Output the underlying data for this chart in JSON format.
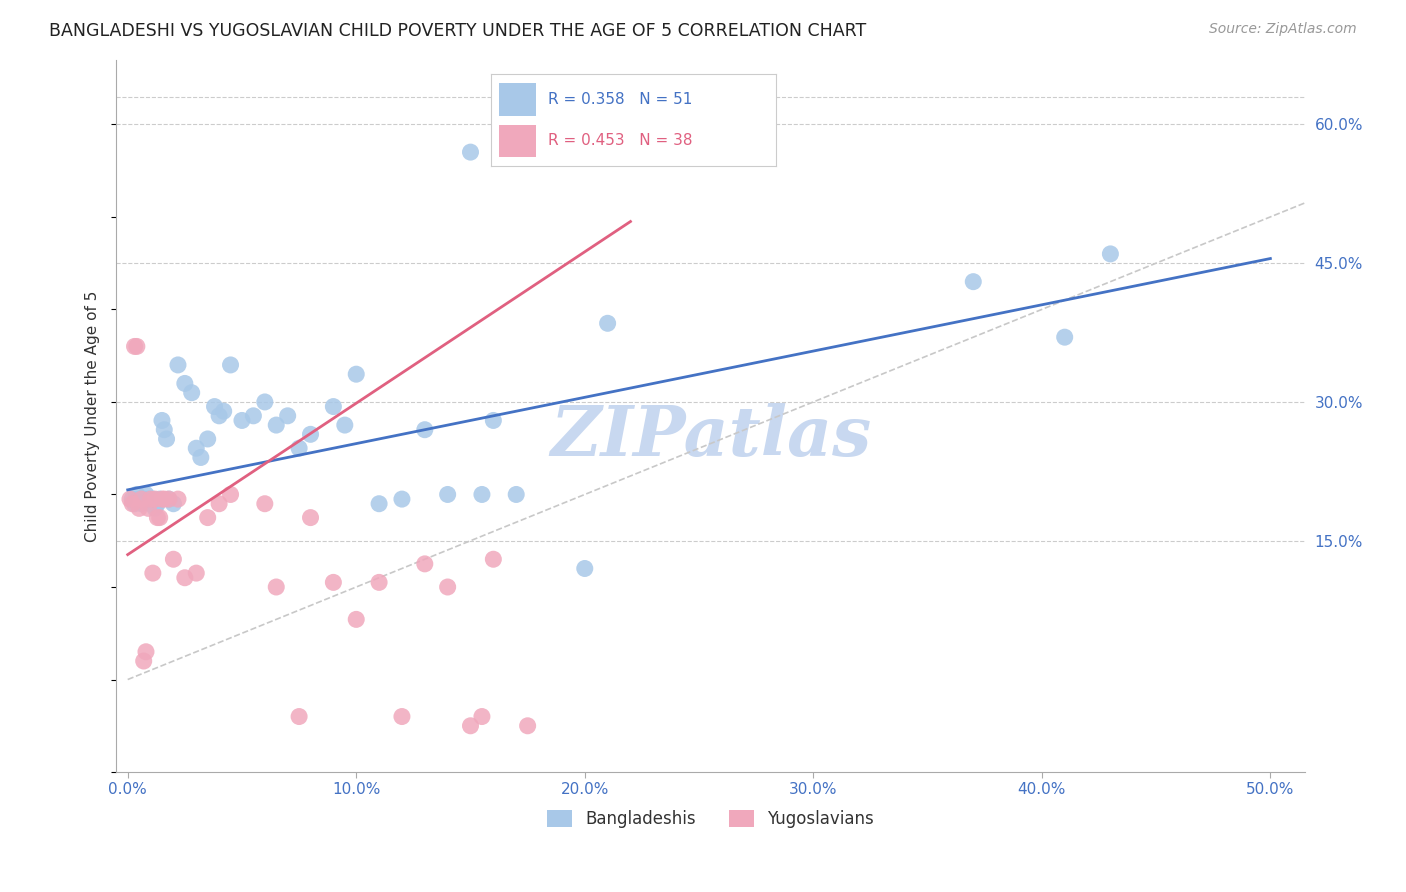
{
  "title": "BANGLADESHI VS YUGOSLAVIAN CHILD POVERTY UNDER THE AGE OF 5 CORRELATION CHART",
  "source": "Source: ZipAtlas.com",
  "ylabel": "Child Poverty Under the Age of 5",
  "xlabel_ticks": [
    "0.0%",
    "10.0%",
    "20.0%",
    "30.0%",
    "40.0%",
    "50.0%"
  ],
  "xlabel_vals": [
    0.0,
    0.1,
    0.2,
    0.3,
    0.4,
    0.5
  ],
  "ylabel_ticks": [
    "15.0%",
    "30.0%",
    "45.0%",
    "60.0%"
  ],
  "ylabel_vals": [
    0.15,
    0.3,
    0.45,
    0.6
  ],
  "xlim": [
    -0.005,
    0.515
  ],
  "ylim": [
    -0.1,
    0.67
  ],
  "bangladeshi_R": 0.358,
  "bangladeshi_N": 51,
  "yugoslavian_R": 0.453,
  "yugoslavian_N": 38,
  "bangladeshi_color": "#a8c8e8",
  "yugoslavian_color": "#f0a8bc",
  "bangladeshi_line_color": "#4472c4",
  "yugoslavian_line_color": "#e06080",
  "diagonal_color": "#c8c8c8",
  "ban_line_x0": 0.0,
  "ban_line_y0": 0.205,
  "ban_line_x1": 0.5,
  "ban_line_y1": 0.455,
  "yug_line_x0": 0.0,
  "yug_line_y0": 0.135,
  "yug_line_x1": 0.22,
  "yug_line_y1": 0.495,
  "bangladeshi_x": [
    0.002,
    0.003,
    0.004,
    0.005,
    0.006,
    0.007,
    0.008,
    0.009,
    0.01,
    0.011,
    0.012,
    0.013,
    0.014,
    0.015,
    0.016,
    0.017,
    0.018,
    0.02,
    0.022,
    0.025,
    0.028,
    0.03,
    0.032,
    0.035,
    0.038,
    0.04,
    0.042,
    0.045,
    0.05,
    0.055,
    0.06,
    0.065,
    0.07,
    0.075,
    0.08,
    0.09,
    0.095,
    0.1,
    0.11,
    0.12,
    0.13,
    0.14,
    0.15,
    0.155,
    0.16,
    0.17,
    0.2,
    0.21,
    0.37,
    0.41,
    0.43
  ],
  "bangladeshi_y": [
    0.195,
    0.19,
    0.2,
    0.195,
    0.19,
    0.195,
    0.2,
    0.195,
    0.19,
    0.195,
    0.185,
    0.19,
    0.195,
    0.28,
    0.27,
    0.26,
    0.195,
    0.19,
    0.34,
    0.32,
    0.31,
    0.25,
    0.24,
    0.26,
    0.295,
    0.285,
    0.29,
    0.34,
    0.28,
    0.285,
    0.3,
    0.275,
    0.285,
    0.25,
    0.265,
    0.295,
    0.275,
    0.33,
    0.19,
    0.195,
    0.27,
    0.2,
    0.57,
    0.2,
    0.28,
    0.2,
    0.12,
    0.385,
    0.43,
    0.37,
    0.46
  ],
  "yugoslavian_x": [
    0.001,
    0.002,
    0.003,
    0.004,
    0.005,
    0.006,
    0.007,
    0.008,
    0.009,
    0.01,
    0.011,
    0.012,
    0.013,
    0.014,
    0.015,
    0.016,
    0.018,
    0.02,
    0.022,
    0.025,
    0.03,
    0.035,
    0.04,
    0.045,
    0.06,
    0.065,
    0.075,
    0.08,
    0.09,
    0.1,
    0.11,
    0.12,
    0.13,
    0.14,
    0.15,
    0.155,
    0.16,
    0.175
  ],
  "yugoslavian_y": [
    0.195,
    0.19,
    0.36,
    0.36,
    0.185,
    0.195,
    0.02,
    0.03,
    0.185,
    0.195,
    0.115,
    0.195,
    0.175,
    0.175,
    0.195,
    0.195,
    0.195,
    0.13,
    0.195,
    0.11,
    0.115,
    0.175,
    0.19,
    0.2,
    0.19,
    0.1,
    -0.04,
    0.175,
    0.105,
    0.065,
    0.105,
    -0.04,
    0.125,
    0.1,
    -0.05,
    -0.04,
    0.13,
    -0.05
  ],
  "watermark": "ZIPatlas",
  "watermark_color": "#c8d8f0",
  "background_color": "#ffffff",
  "grid_color": "#cccccc"
}
